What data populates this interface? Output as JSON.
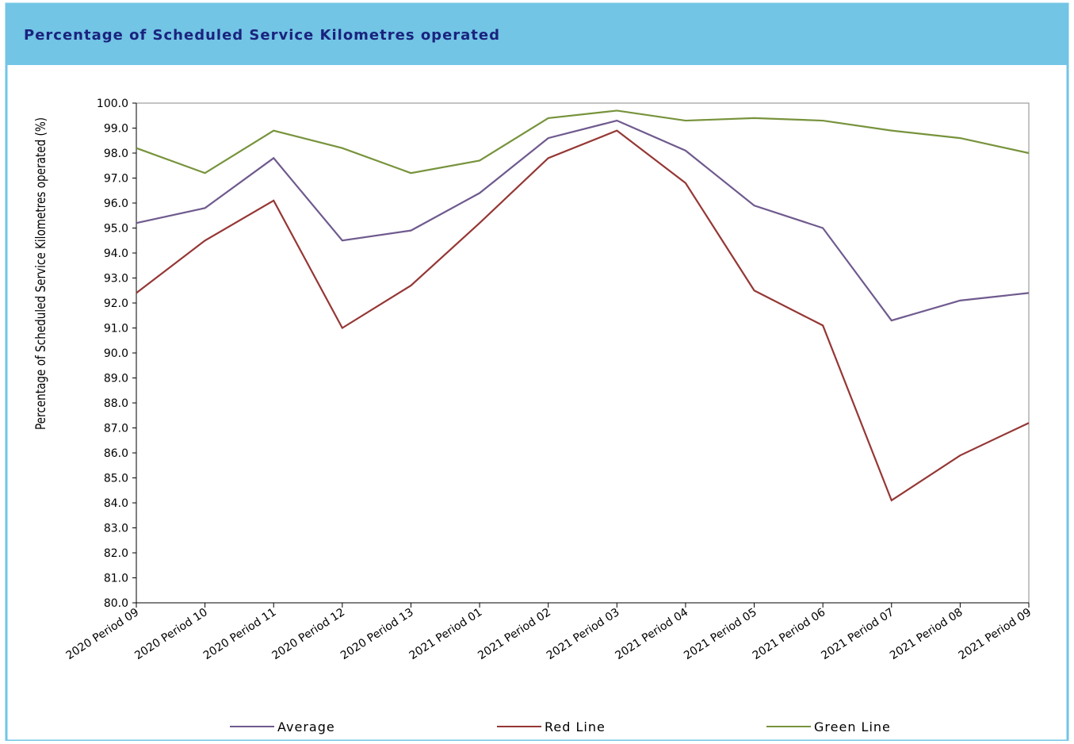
{
  "chart_data": {
    "type": "line",
    "title": "Percentage of Scheduled Service Kilometres operated",
    "y_label": "Percentage of Scheduled Service Kilometres operated (%)",
    "categories": [
      "2020 Period 09",
      "2020 Period 10",
      "2020 Period 11",
      "2020 Period 12",
      "2020 Period 13",
      "2021 Period 01",
      "2021 Period 02",
      "2021 Period 03",
      "2021 Period 04",
      "2021 Period 05",
      "2021 Period 06",
      "2021 Period 07",
      "2021 Period 08",
      "2021 Period 09"
    ],
    "series": [
      {
        "name": "Average",
        "color": "#6f5a8e",
        "values": [
          95.2,
          95.8,
          97.8,
          94.5,
          94.9,
          96.4,
          98.6,
          99.3,
          98.1,
          95.9,
          95.0,
          91.3,
          92.1,
          92.4
        ]
      },
      {
        "name": "Red Line",
        "color": "#953735",
        "values": [
          92.4,
          94.5,
          96.1,
          91.0,
          92.7,
          95.2,
          97.8,
          98.9,
          96.8,
          92.5,
          91.1,
          84.1,
          85.9,
          87.2
        ]
      },
      {
        "name": "Green Line",
        "color": "#77933c",
        "values": [
          98.2,
          97.2,
          98.9,
          98.2,
          97.2,
          97.7,
          99.4,
          99.7,
          99.3,
          99.4,
          99.3,
          98.9,
          98.6,
          98.0
        ]
      }
    ],
    "ylim": [
      80,
      100
    ],
    "yticks": [
      {
        "value": 80,
        "label": "80.0"
      },
      {
        "value": 81,
        "label": "81.0"
      },
      {
        "value": 82,
        "label": "82.0"
      },
      {
        "value": 83,
        "label": "83.0"
      },
      {
        "value": 84,
        "label": "84.0"
      },
      {
        "value": 85,
        "label": "85.0"
      },
      {
        "value": 86,
        "label": "86.0"
      },
      {
        "value": 87,
        "label": "87.0"
      },
      {
        "value": 88,
        "label": "88.0"
      },
      {
        "value": 89,
        "label": "89.0"
      },
      {
        "value": 90,
        "label": "90.0"
      },
      {
        "value": 91,
        "label": "91.0"
      },
      {
        "value": 92,
        "label": "92.0"
      },
      {
        "value": 93,
        "label": "93.0"
      },
      {
        "value": 94,
        "label": "94.0"
      },
      {
        "value": 95,
        "label": "95.0"
      },
      {
        "value": 96,
        "label": "96.0"
      },
      {
        "value": 97,
        "label": "97.0"
      },
      {
        "value": 98,
        "label": "98.0"
      },
      {
        "value": 99,
        "label": "99.0"
      },
      {
        "value": 100,
        "label": "100.0"
      }
    ],
    "grid": false,
    "legend": "bottom"
  }
}
